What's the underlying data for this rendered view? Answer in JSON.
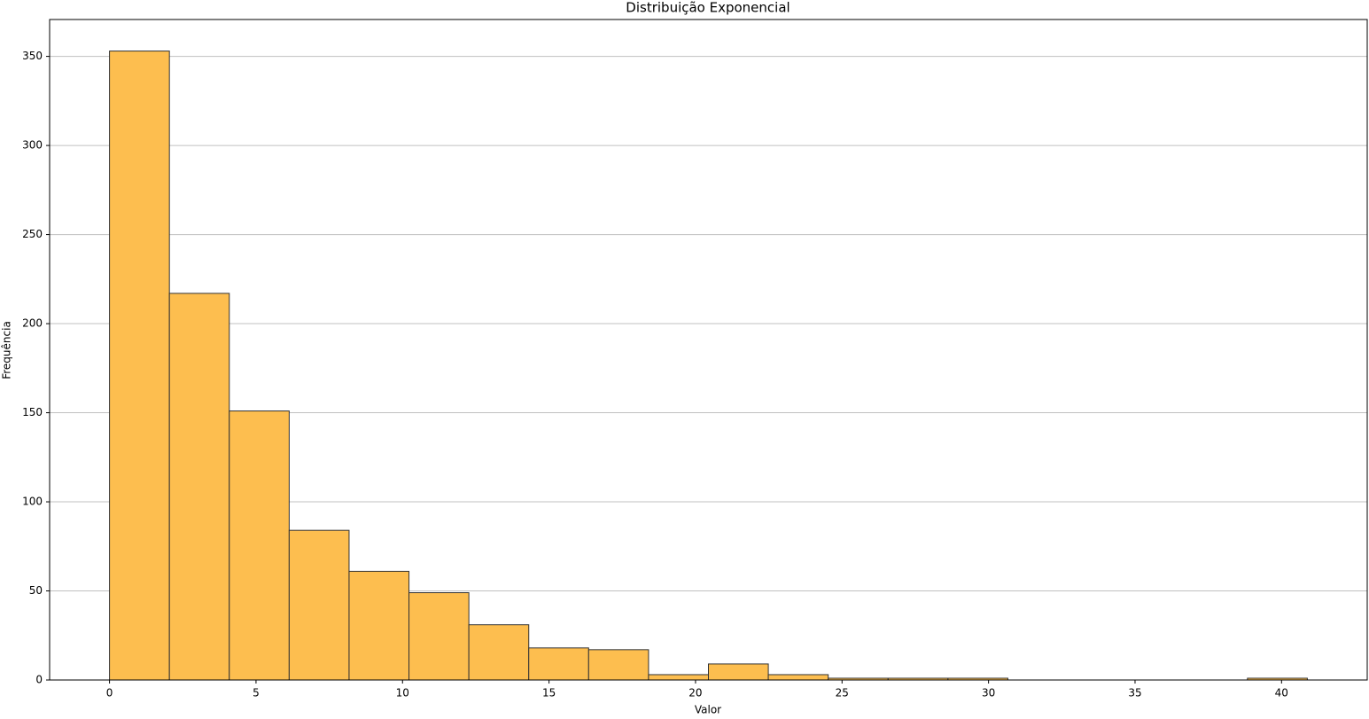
{
  "chart_data": {
    "type": "histogram",
    "title": "Distribuição Exponencial",
    "x_label": "Valor",
    "y_label": "Frequência",
    "bins": [
      0,
      2.044,
      4.088,
      6.132,
      8.176,
      10.22,
      12.264,
      14.308,
      16.352,
      18.396,
      20.44,
      22.484,
      24.528,
      26.572,
      28.616,
      30.66,
      32.704,
      34.748,
      36.792,
      38.836,
      40.88
    ],
    "values": [
      353,
      217,
      151,
      84,
      61,
      49,
      31,
      18,
      17,
      3,
      9,
      3,
      1,
      1,
      1,
      0,
      0,
      0,
      0,
      1
    ],
    "color": "#fdbe4f",
    "edge_color": "#333333",
    "xlim": [
      -2.044,
      42.924
    ],
    "xticks": [
      0,
      5,
      10,
      15,
      20,
      25,
      30,
      35,
      40
    ],
    "ylim": [
      0,
      370.7
    ],
    "yticks": [
      0,
      50,
      100,
      150,
      200,
      250,
      300,
      350
    ],
    "grid": "y"
  }
}
